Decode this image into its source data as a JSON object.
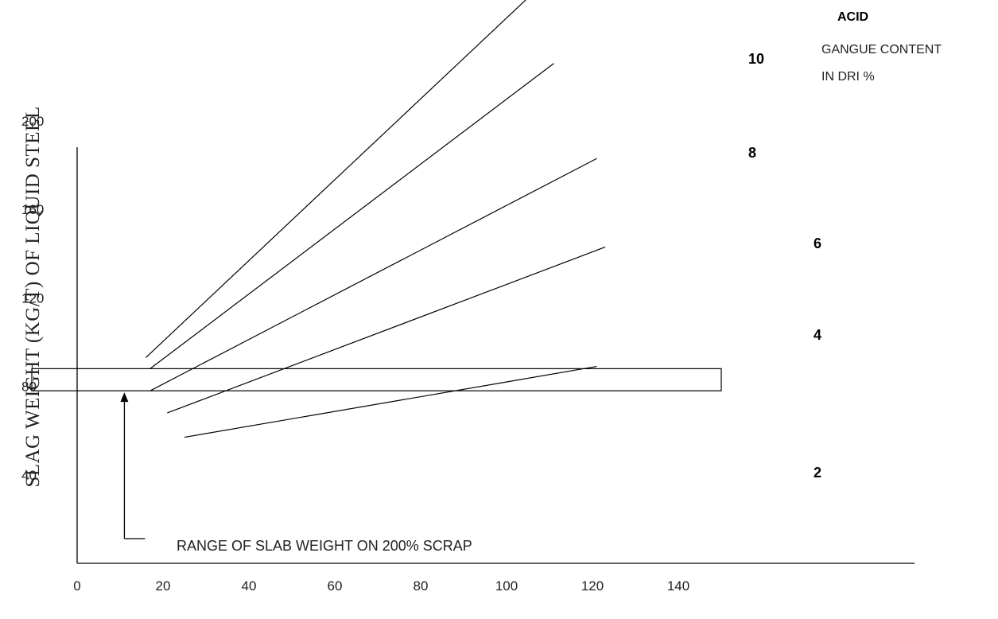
{
  "chart_data": {
    "type": "line",
    "title": "",
    "xlabel": "",
    "ylabel": "SLAG WEIGHT (KG/T) OF LIQUID STEEL",
    "xlim": [
      0,
      140
    ],
    "ylim": [
      0,
      240
    ],
    "x_ticks": [
      0,
      20,
      40,
      60,
      80,
      100,
      120,
      140
    ],
    "y_ticks": [
      40,
      80,
      120,
      160,
      200
    ],
    "grid": false,
    "legend": {
      "title": "ACID",
      "lines": [
        "GANGUE CONTENT",
        "IN DRI %"
      ],
      "placement": "top-right"
    },
    "series": [
      {
        "name": "10",
        "points": [
          [
            16,
            93
          ],
          [
            109,
            263
          ]
        ]
      },
      {
        "name": "8",
        "points": [
          [
            17,
            88
          ],
          [
            111,
            226
          ]
        ]
      },
      {
        "name": "6",
        "points": [
          [
            17,
            78
          ],
          [
            121,
            183
          ]
        ]
      },
      {
        "name": "4",
        "points": [
          [
            21,
            68
          ],
          [
            123,
            143
          ]
        ]
      },
      {
        "name": "2",
        "points": [
          [
            25,
            57
          ],
          [
            121,
            89
          ]
        ]
      }
    ],
    "band": {
      "y_range": [
        78,
        88
      ],
      "x_range": [
        0,
        150
      ],
      "annotation": "RANGE OF SLAB WEIGHT ON 200% SCRAP"
    }
  }
}
